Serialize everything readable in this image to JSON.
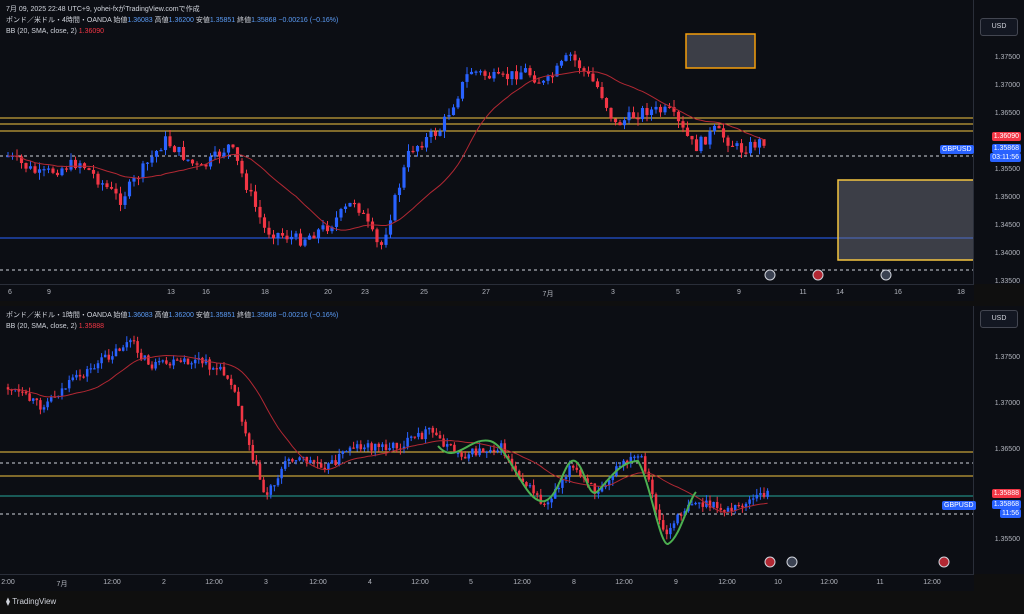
{
  "pane1": {
    "legend_line1": {
      "date": "7月 09, 2025 22:48 UTC+9,",
      "author": "yohei-fxがTradingView.comで作成"
    },
    "legend_line2": {
      "symbol": "ポンド／米ドル・4時間・OANDA",
      "open_label": "始値",
      "open": "1.36083",
      "high_label": "高値",
      "high": "1.36200",
      "low_label": "安値",
      "low": "1.35851",
      "close_label": "終値",
      "close": "1.35868",
      "change": "−0.00216 (−0.16%)"
    },
    "indicator": "BB (20, SMA, close, 2)",
    "indicator_value": "1.36090",
    "currency": "USD",
    "price_ticks": [
      "1.37500",
      "1.37000",
      "1.36500",
      "1.35500",
      "1.35000",
      "1.34500",
      "1.34000",
      "1.33500"
    ],
    "time_ticks": [
      "6",
      "9",
      "13",
      "16",
      "18",
      "20",
      "23",
      "25",
      "27",
      "7月",
      "3",
      "5",
      "9",
      "11",
      "14",
      "16",
      "18"
    ],
    "tags": {
      "bb_value": "1.36090",
      "symbol": "GBPUSD",
      "price": "1.35868",
      "countdown": "03:11:56"
    }
  },
  "pane2": {
    "legend_line1": {
      "symbol": "ポンド／米ドル・1時間・OANDA",
      "open_label": "始値",
      "open": "1.36083",
      "high_label": "高値",
      "high": "1.36200",
      "low_label": "安値",
      "low": "1.35851",
      "close_label": "終値",
      "close": "1.35868",
      "change": "−0.00216 (−0.16%)"
    },
    "indicator": "BB (20, SMA, close, 2)",
    "indicator_value": "1.35888",
    "currency": "USD",
    "price_ticks": [
      "1.37500",
      "1.37000",
      "1.36500",
      "1.35500"
    ],
    "time_ticks": [
      "2:00",
      "7月",
      "12:00",
      "2",
      "12:00",
      "3",
      "12:00",
      "4",
      "12:00",
      "5",
      "12:00",
      "8",
      "12:00",
      "9",
      "12:00",
      "10",
      "12:00",
      "11",
      "12:00"
    ],
    "tags": {
      "bb_value": "1.35888",
      "symbol": "GBPUSD",
      "price": "1.35868",
      "countdown": "11:56"
    }
  },
  "footer": {
    "logo": "TradingView"
  },
  "colors": {
    "up": "#2962ff",
    "down": "#f23645",
    "bb": "#b22833",
    "level": "#f5c542",
    "wave": "#4caf50"
  }
}
